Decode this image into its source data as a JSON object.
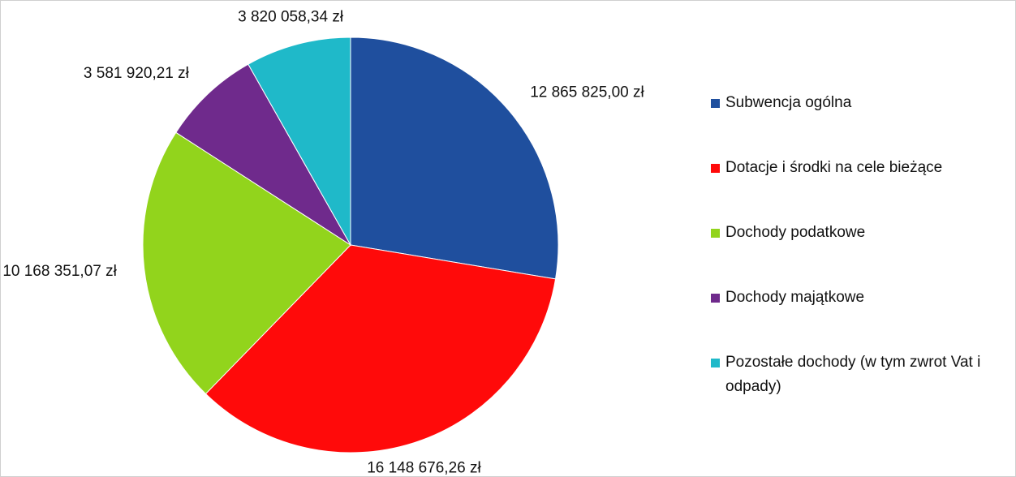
{
  "chart_data": {
    "type": "pie",
    "categories": [
      "Subwencja ogólna",
      "Dotacje i środki na cele bieżące",
      "Dochody podatkowe",
      "Dochody majątkowe",
      "Pozostałe dochody (w tym zwrot Vat i odpady)"
    ],
    "values": [
      12865825.0,
      16148676.26,
      10168351.07,
      3581920.21,
      3820058.34
    ],
    "value_labels": [
      "12 865 825,00 zł",
      "16 148 676,26 zł",
      "10 168 351,07 zł",
      "3 581 920,21 zł",
      "3 820 058,34 zł"
    ],
    "colors": [
      "#1f4f9e",
      "#ff0a0a",
      "#92d41c",
      "#6f2a8c",
      "#1fb9c9"
    ],
    "legend": "right"
  }
}
